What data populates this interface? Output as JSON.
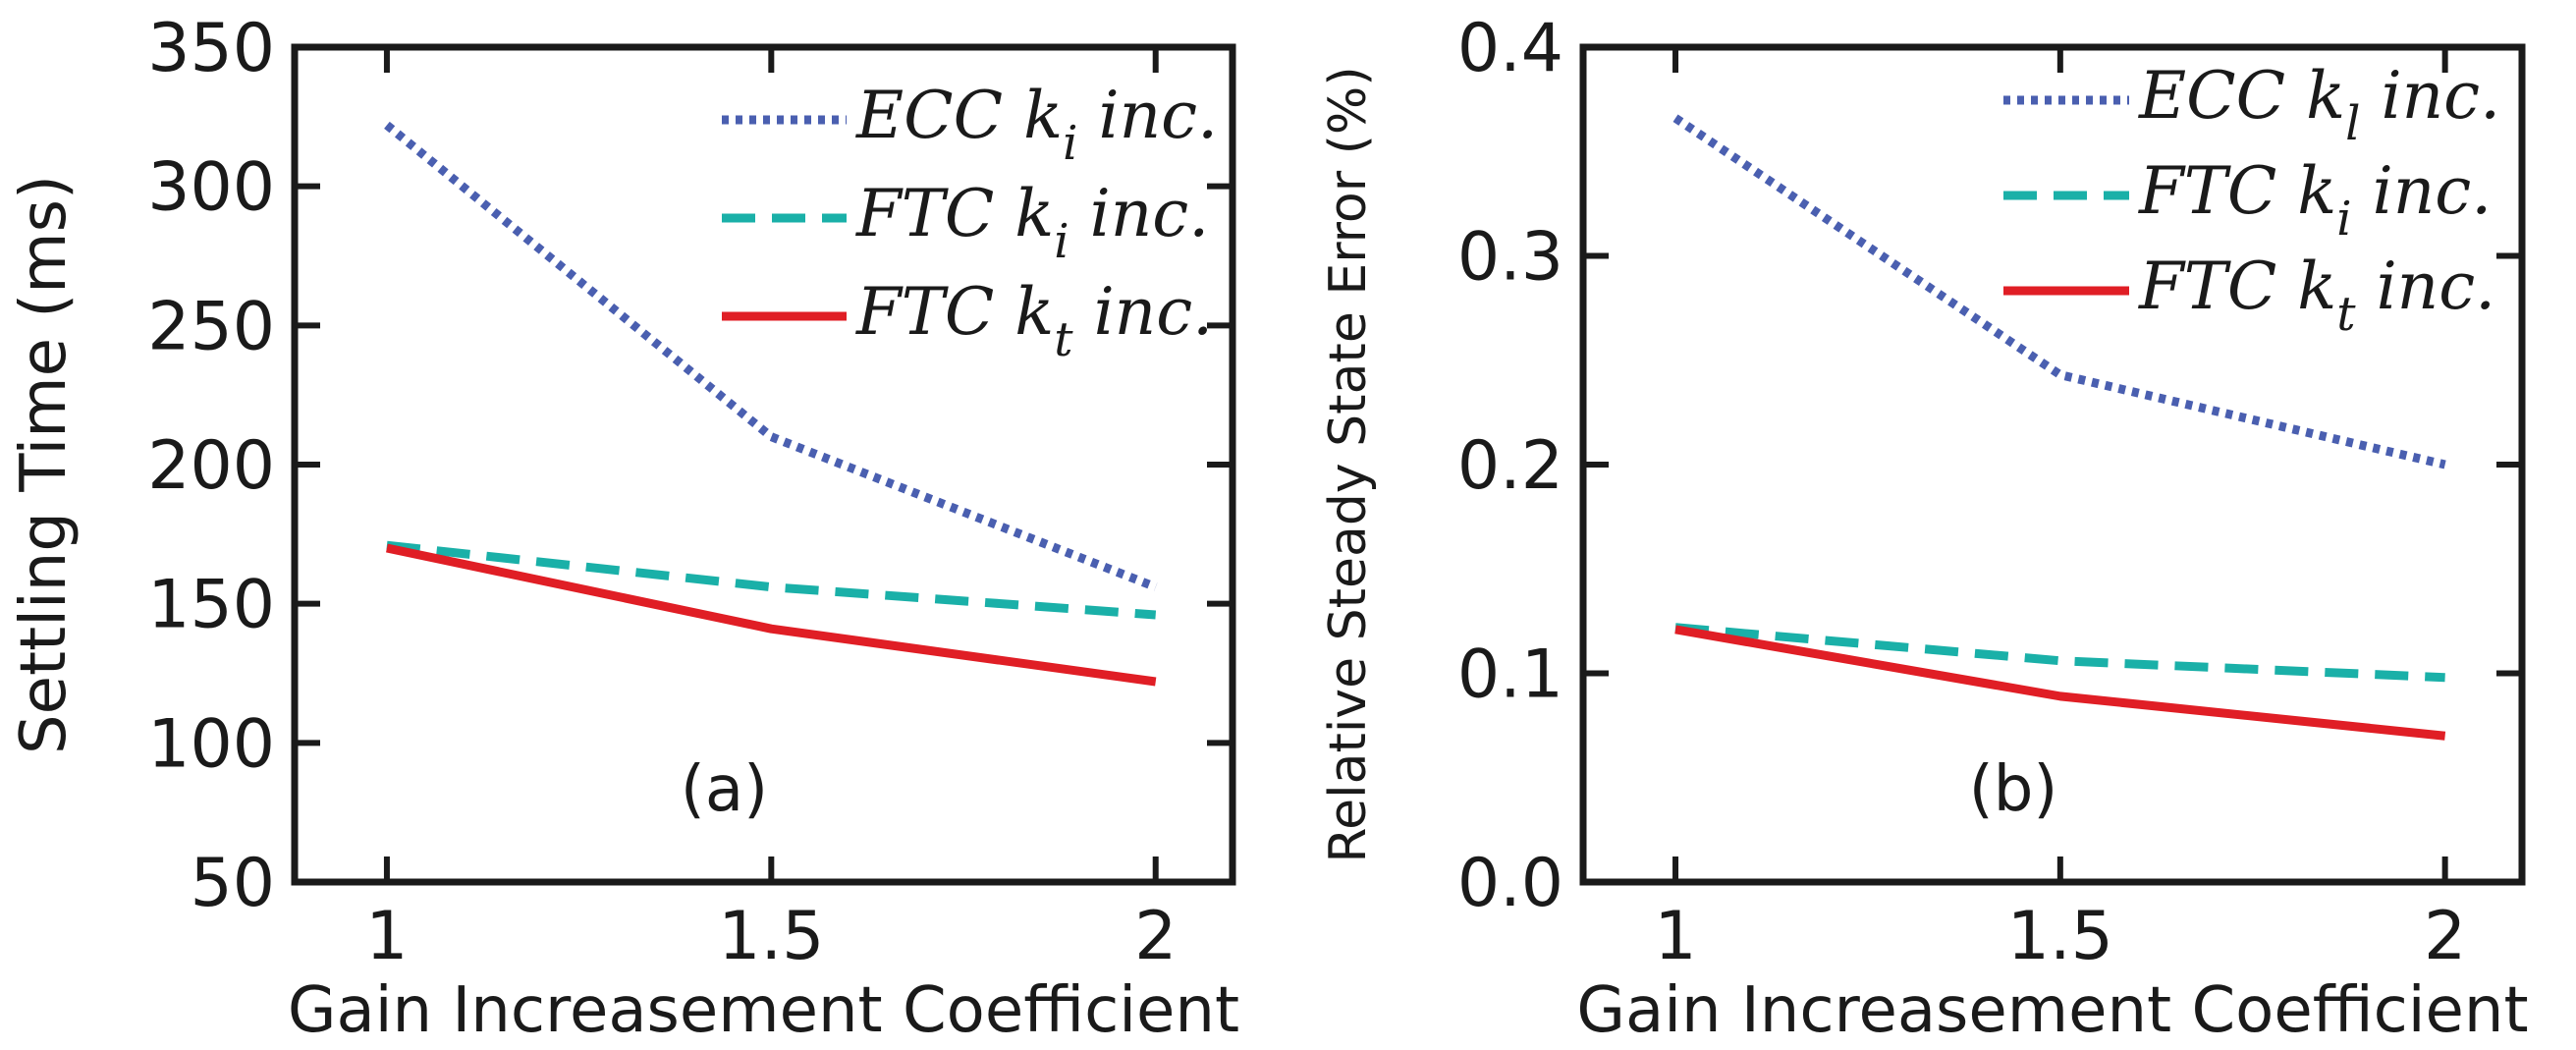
{
  "chart_data": [
    {
      "type": "line",
      "panel_label": "(a)",
      "xlabel": "Gain Increasement Coefficient",
      "ylabel": "Settling Time (ms)",
      "x": [
        1,
        1.5,
        2
      ],
      "xticks": [
        1,
        1.5,
        2
      ],
      "xtick_labels": [
        "1",
        "1.5",
        "2"
      ],
      "xlim": [
        0.88,
        2.1
      ],
      "ylim": [
        50,
        350
      ],
      "yticks": [
        50,
        100,
        150,
        200,
        250,
        300,
        350
      ],
      "ytick_labels": [
        "50",
        "100",
        "150",
        "200",
        "250",
        "300",
        "350"
      ],
      "grid": false,
      "legend_position": "top-right",
      "series": [
        {
          "name": "ECC k_i inc.",
          "legend_main": "ECC k",
          "legend_sub": "i",
          "legend_suffix": " inc.",
          "style": "dotted",
          "color": "#4a5fb0",
          "values": [
            322,
            210,
            156
          ]
        },
        {
          "name": "FTC k_i inc.",
          "legend_main": "FTC k",
          "legend_sub": "i",
          "legend_suffix": " inc.",
          "style": "dashed",
          "color": "#1ab0a8",
          "values": [
            171,
            156,
            146
          ]
        },
        {
          "name": "FTC k_t inc.",
          "legend_main": "FTC k",
          "legend_sub": "t",
          "legend_suffix": " inc.",
          "style": "solid",
          "color": "#e01e25",
          "values": [
            170,
            141,
            122
          ]
        }
      ]
    },
    {
      "type": "line",
      "panel_label": "(b)",
      "xlabel": "Gain Increasement Coefficient",
      "ylabel": "Relative Steady State Error (%)",
      "x": [
        1,
        1.5,
        2
      ],
      "xticks": [
        1,
        1.5,
        2
      ],
      "xtick_labels": [
        "1",
        "1.5",
        "2"
      ],
      "xlim": [
        0.88,
        2.1
      ],
      "ylim": [
        0.0,
        0.4
      ],
      "yticks": [
        0.0,
        0.1,
        0.2,
        0.3,
        0.4
      ],
      "ytick_labels": [
        "0.0",
        "0.1",
        "0.2",
        "0.3",
        "0.4"
      ],
      "grid": false,
      "legend_position": "top-right",
      "series": [
        {
          "name": "ECC k_l inc.",
          "legend_main": "ECC k",
          "legend_sub": "l",
          "legend_suffix": " inc.",
          "style": "dotted",
          "color": "#4a5fb0",
          "values": [
            0.366,
            0.243,
            0.2
          ]
        },
        {
          "name": "FTC k_i inc.",
          "legend_main": "FTC k",
          "legend_sub": "i",
          "legend_suffix": " inc.",
          "style": "dashed",
          "color": "#1ab0a8",
          "values": [
            0.122,
            0.106,
            0.098
          ]
        },
        {
          "name": "FTC k_t inc.",
          "legend_main": "FTC k",
          "legend_sub": "t",
          "legend_suffix": " inc.",
          "style": "solid",
          "color": "#e01e25",
          "values": [
            0.121,
            0.089,
            0.07
          ]
        }
      ]
    }
  ]
}
